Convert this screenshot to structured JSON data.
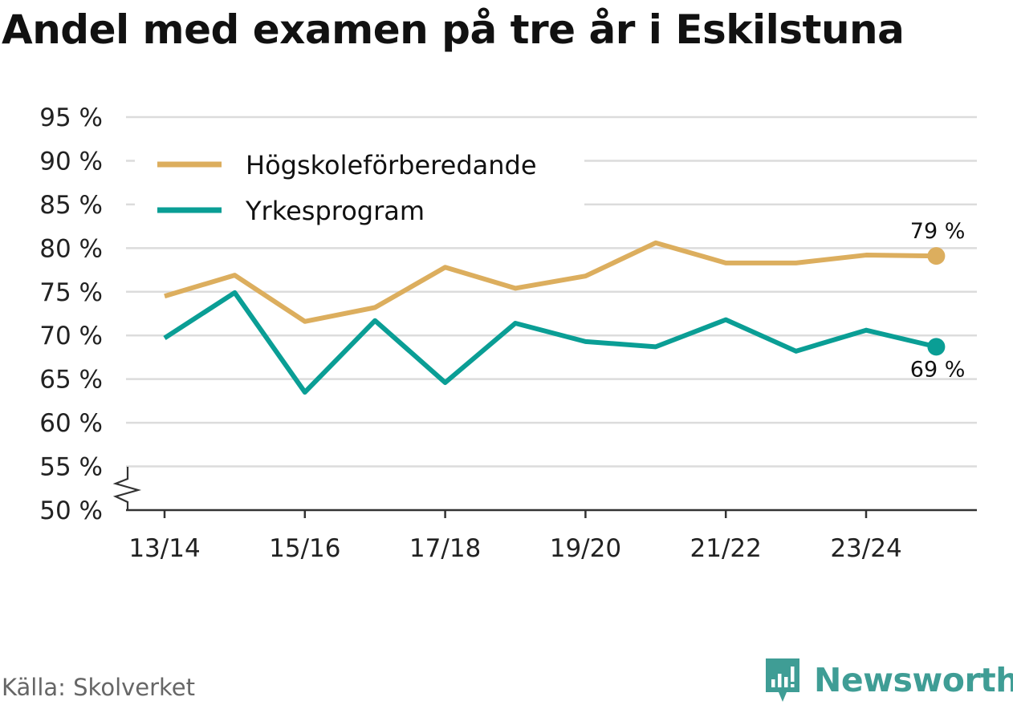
{
  "title": "Andel med examen på tre år i Eskilstuna",
  "source": "Källa: Skolverket",
  "brand": {
    "name": "Newsworthy",
    "icon": "newsworthy-logo-icon",
    "color": "#3f9d95"
  },
  "chart_data": {
    "type": "line",
    "title": "Andel med examen på tre år i Eskilstuna",
    "xlabel": "",
    "ylabel": "",
    "x": [
      "13/14",
      "14/15",
      "15/16",
      "16/17",
      "17/18",
      "18/19",
      "19/20",
      "20/21",
      "21/22",
      "22/23",
      "23/24",
      "24/25"
    ],
    "x_tick_labels": [
      "13/14",
      "15/16",
      "17/18",
      "19/20",
      "21/22",
      "23/24"
    ],
    "ylim": [
      50,
      95
    ],
    "y_ticks": [
      50,
      55,
      60,
      65,
      70,
      75,
      80,
      85,
      90,
      95
    ],
    "y_tick_labels": [
      "50 %",
      "55 %",
      "60 %",
      "65 %",
      "70 %",
      "75 %",
      "80 %",
      "85 %",
      "90 %",
      "95 %"
    ],
    "axis_break": true,
    "grid": true,
    "legend_position": "top-left",
    "series": [
      {
        "name": "Högskoleförberedande",
        "color": "#dcae5e",
        "values": [
          74.5,
          76.9,
          71.6,
          73.2,
          77.8,
          75.4,
          76.8,
          80.6,
          78.3,
          78.3,
          79.2,
          79.1
        ],
        "end_label": "79 %"
      },
      {
        "name": "Yrkesprogram",
        "color": "#0a9e95",
        "values": [
          69.7,
          74.9,
          63.5,
          71.7,
          64.6,
          71.4,
          69.3,
          68.7,
          71.8,
          68.2,
          70.6,
          68.7
        ],
        "end_label": "69 %"
      }
    ]
  }
}
